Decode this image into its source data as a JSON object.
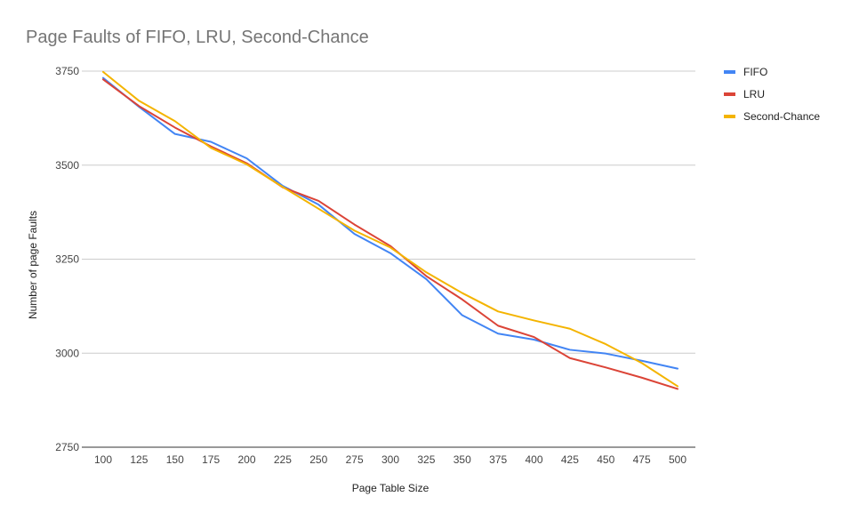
{
  "chart_data": {
    "type": "line",
    "title": "Page Faults of FIFO, LRU, Second-Chance",
    "xlabel": "Page Table Size",
    "ylabel": "Number of page Faults",
    "x": [
      100,
      125,
      150,
      175,
      200,
      225,
      250,
      275,
      300,
      325,
      350,
      375,
      400,
      425,
      450,
      475,
      500
    ],
    "yticks": [
      2750,
      3000,
      3250,
      3500,
      3750
    ],
    "ylim": [
      2750,
      3750
    ],
    "grid": true,
    "legend_position": "right",
    "series": [
      {
        "name": "FIFO",
        "color": "#4285f4",
        "values": [
          3732,
          3655,
          3583,
          3562,
          3518,
          3445,
          3395,
          3317,
          3266,
          3197,
          3101,
          3052,
          3036,
          3009,
          2999,
          2980,
          2959
        ]
      },
      {
        "name": "LRU",
        "color": "#db4437",
        "values": [
          3728,
          3657,
          3600,
          3550,
          3505,
          3441,
          3405,
          3342,
          3285,
          3205,
          3143,
          3073,
          3043,
          2987,
          2962,
          2935,
          2905
        ]
      },
      {
        "name": "Second-Chance",
        "color": "#f4b400",
        "values": [
          3748,
          3671,
          3617,
          3546,
          3502,
          3442,
          3384,
          3326,
          3281,
          3215,
          3160,
          3111,
          3087,
          3065,
          3024,
          2974,
          2912
        ]
      }
    ]
  }
}
